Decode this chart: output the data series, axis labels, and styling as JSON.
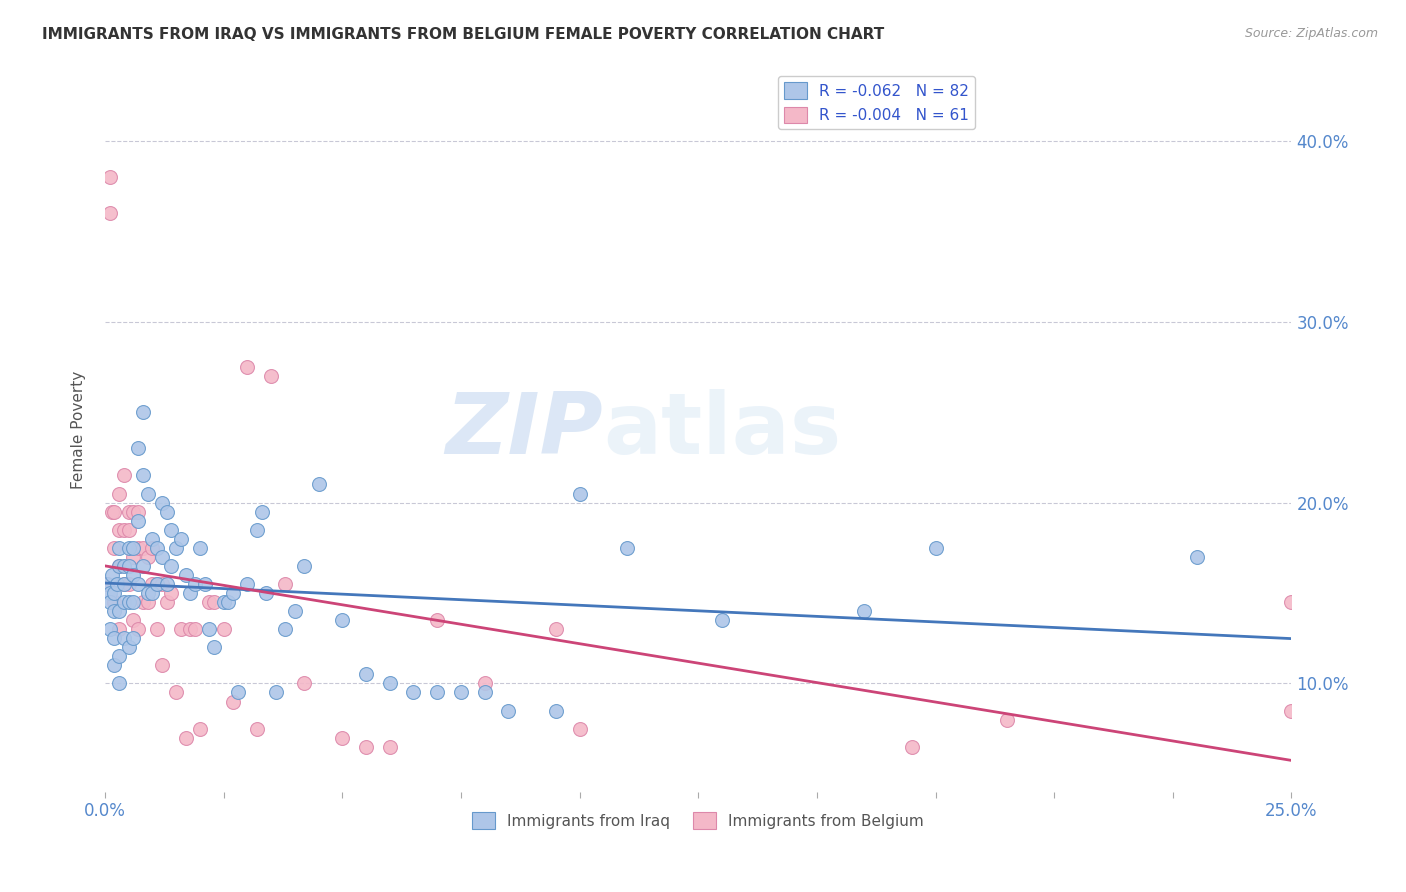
{
  "title": "IMMIGRANTS FROM IRAQ VS IMMIGRANTS FROM BELGIUM FEMALE POVERTY CORRELATION CHART",
  "source": "Source: ZipAtlas.com",
  "ylabel": "Female Poverty",
  "y_ticks": [
    0.1,
    0.2,
    0.3,
    0.4
  ],
  "y_tick_labels": [
    "10.0%",
    "20.0%",
    "30.0%",
    "40.0%"
  ],
  "xlim": [
    0.0,
    0.25
  ],
  "ylim": [
    0.04,
    0.44
  ],
  "iraq_R": "-0.062",
  "iraq_N": "82",
  "belgium_R": "-0.004",
  "belgium_N": "61",
  "iraq_color": "#aec6e8",
  "iraq_edge_color": "#6699cc",
  "iraq_line_color": "#4477bb",
  "belgium_color": "#f4b8c8",
  "belgium_edge_color": "#dd88aa",
  "belgium_line_color": "#cc4477",
  "legend_text_color": "#3355cc",
  "axis_label_color": "#5588cc",
  "watermark_zip": "ZIP",
  "watermark_atlas": "atlas",
  "background_color": "#ffffff",
  "iraq_x": [
    0.0005,
    0.001,
    0.001,
    0.001,
    0.0015,
    0.002,
    0.002,
    0.002,
    0.002,
    0.0025,
    0.003,
    0.003,
    0.003,
    0.003,
    0.003,
    0.004,
    0.004,
    0.004,
    0.004,
    0.005,
    0.005,
    0.005,
    0.005,
    0.006,
    0.006,
    0.006,
    0.006,
    0.007,
    0.007,
    0.007,
    0.008,
    0.008,
    0.008,
    0.009,
    0.009,
    0.01,
    0.01,
    0.011,
    0.011,
    0.012,
    0.012,
    0.013,
    0.013,
    0.014,
    0.014,
    0.015,
    0.016,
    0.017,
    0.018,
    0.019,
    0.02,
    0.021,
    0.022,
    0.023,
    0.025,
    0.026,
    0.027,
    0.028,
    0.03,
    0.032,
    0.033,
    0.034,
    0.036,
    0.038,
    0.04,
    0.042,
    0.045,
    0.05,
    0.055,
    0.06,
    0.065,
    0.07,
    0.075,
    0.08,
    0.085,
    0.095,
    0.1,
    0.11,
    0.13,
    0.16,
    0.175,
    0.23
  ],
  "iraq_y": [
    0.155,
    0.15,
    0.145,
    0.13,
    0.16,
    0.15,
    0.14,
    0.125,
    0.11,
    0.155,
    0.175,
    0.165,
    0.14,
    0.115,
    0.1,
    0.165,
    0.155,
    0.145,
    0.125,
    0.175,
    0.165,
    0.145,
    0.12,
    0.175,
    0.16,
    0.145,
    0.125,
    0.23,
    0.19,
    0.155,
    0.25,
    0.215,
    0.165,
    0.205,
    0.15,
    0.18,
    0.15,
    0.175,
    0.155,
    0.2,
    0.17,
    0.195,
    0.155,
    0.185,
    0.165,
    0.175,
    0.18,
    0.16,
    0.15,
    0.155,
    0.175,
    0.155,
    0.13,
    0.12,
    0.145,
    0.145,
    0.15,
    0.095,
    0.155,
    0.185,
    0.195,
    0.15,
    0.095,
    0.13,
    0.14,
    0.165,
    0.21,
    0.135,
    0.105,
    0.1,
    0.095,
    0.095,
    0.095,
    0.095,
    0.085,
    0.085,
    0.205,
    0.175,
    0.135,
    0.14,
    0.175,
    0.17
  ],
  "belgium_x": [
    0.0005,
    0.001,
    0.001,
    0.0015,
    0.002,
    0.002,
    0.002,
    0.003,
    0.003,
    0.003,
    0.003,
    0.004,
    0.004,
    0.004,
    0.005,
    0.005,
    0.005,
    0.006,
    0.006,
    0.006,
    0.007,
    0.007,
    0.007,
    0.008,
    0.008,
    0.009,
    0.009,
    0.01,
    0.01,
    0.011,
    0.011,
    0.012,
    0.012,
    0.013,
    0.014,
    0.015,
    0.016,
    0.017,
    0.018,
    0.019,
    0.02,
    0.022,
    0.023,
    0.025,
    0.027,
    0.03,
    0.032,
    0.035,
    0.038,
    0.042,
    0.05,
    0.055,
    0.06,
    0.07,
    0.08,
    0.095,
    0.1,
    0.17,
    0.19,
    0.25,
    0.25
  ],
  "belgium_y": [
    0.155,
    0.38,
    0.36,
    0.195,
    0.195,
    0.175,
    0.145,
    0.205,
    0.185,
    0.165,
    0.13,
    0.215,
    0.185,
    0.155,
    0.195,
    0.185,
    0.155,
    0.195,
    0.17,
    0.135,
    0.195,
    0.175,
    0.13,
    0.175,
    0.145,
    0.17,
    0.145,
    0.175,
    0.155,
    0.155,
    0.13,
    0.155,
    0.11,
    0.145,
    0.15,
    0.095,
    0.13,
    0.07,
    0.13,
    0.13,
    0.075,
    0.145,
    0.145,
    0.13,
    0.09,
    0.275,
    0.075,
    0.27,
    0.155,
    0.1,
    0.07,
    0.065,
    0.065,
    0.135,
    0.1,
    0.13,
    0.075,
    0.065,
    0.08,
    0.085,
    0.145
  ]
}
